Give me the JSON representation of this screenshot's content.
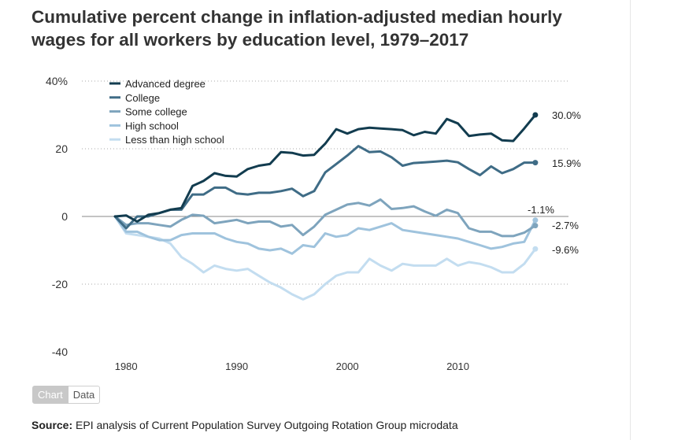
{
  "title": "Cumulative percent change in inflation-adjusted median hourly wages for all workers by education level, 1979–2017",
  "toggle": {
    "chart_label": "Chart",
    "data_label": "Data"
  },
  "source": {
    "label": "Source:",
    "text": " EPI analysis of Current Population Survey Outgoing Rotation Group microdata"
  },
  "colors": {
    "advanced": "#123c4f",
    "college": "#3f6c86",
    "some_college": "#7ea4bd",
    "high_school": "#9fc3dd",
    "less_hs": "#c3ddf0"
  },
  "chart_data": {
    "type": "line",
    "title": "Cumulative percent change in inflation-adjusted median hourly wages for all workers by education level, 1979–2017",
    "xlabel": "",
    "ylabel": "",
    "xlim": [
      1976,
      2020
    ],
    "ylim": [
      -40,
      40
    ],
    "x_ticks": [
      1980,
      1990,
      2000,
      2010
    ],
    "y_ticks": [
      40,
      20,
      0,
      -20,
      -40
    ],
    "y_tick_labels": [
      "40%",
      "20",
      "0",
      "-20",
      "-40"
    ],
    "grid": "horizontal dotted",
    "legend_position": "top-left",
    "x": [
      1979,
      1980,
      1981,
      1982,
      1983,
      1984,
      1985,
      1986,
      1987,
      1988,
      1989,
      1990,
      1991,
      1992,
      1993,
      1994,
      1995,
      1996,
      1997,
      1998,
      1999,
      2000,
      2001,
      2002,
      2003,
      2004,
      2005,
      2006,
      2007,
      2008,
      2009,
      2010,
      2011,
      2012,
      2013,
      2014,
      2015,
      2016,
      2017
    ],
    "series": [
      {
        "name": "Advanced degree",
        "color": "#123c4f",
        "end_label": "30.0%",
        "values": [
          0,
          0.3,
          -1.5,
          0.5,
          1.0,
          2.0,
          2.5,
          9.0,
          10.5,
          12.8,
          12.0,
          11.8,
          14.0,
          15.0,
          15.5,
          19.0,
          18.8,
          18.0,
          18.2,
          21.5,
          25.8,
          24.5,
          25.8,
          26.2,
          26.0,
          25.8,
          25.5,
          24.0,
          25.0,
          24.5,
          28.8,
          27.5,
          23.8,
          24.2,
          24.5,
          22.5,
          22.3,
          26.0,
          30.0
        ]
      },
      {
        "name": "College",
        "color": "#3f6c86",
        "end_label": "15.9%",
        "values": [
          0,
          -3.5,
          0,
          0,
          1.0,
          2.0,
          2.0,
          6.5,
          6.5,
          8.5,
          8.5,
          6.8,
          6.5,
          7.0,
          7.0,
          7.5,
          8.2,
          6.0,
          7.5,
          13.0,
          15.5,
          18.0,
          20.8,
          19.0,
          19.2,
          17.5,
          15.0,
          15.8,
          16.0,
          16.2,
          16.5,
          16.0,
          14.0,
          12.2,
          14.8,
          12.8,
          14.0,
          15.9,
          15.9
        ]
      },
      {
        "name": "Some college",
        "color": "#7ea4bd",
        "end_label": "-2.7%",
        "values": [
          0,
          -2.5,
          -2.0,
          -2.0,
          -2.5,
          -3.0,
          -1.0,
          0.5,
          0.2,
          -2.0,
          -1.5,
          -1.0,
          -2.0,
          -1.5,
          -1.5,
          -3.0,
          -2.5,
          -5.5,
          -3.0,
          0.5,
          2.0,
          3.5,
          4.0,
          3.2,
          5.0,
          2.2,
          2.5,
          3.0,
          1.5,
          0.2,
          2.0,
          1.0,
          -3.5,
          -4.5,
          -4.5,
          -5.8,
          -5.8,
          -4.8,
          -2.7
        ]
      },
      {
        "name": "High school",
        "color": "#9fc3dd",
        "end_label": "-1.1%",
        "values": [
          0,
          -4.5,
          -4.5,
          -6.0,
          -7.0,
          -7.0,
          -5.5,
          -5.0,
          -5.0,
          -5.0,
          -6.5,
          -7.5,
          -8.0,
          -9.5,
          -10.0,
          -9.5,
          -11.0,
          -8.5,
          -9.0,
          -5.0,
          -6.0,
          -5.5,
          -3.5,
          -4.0,
          -3.0,
          -2.0,
          -4.0,
          -4.5,
          -5.0,
          -5.5,
          -6.0,
          -6.5,
          -7.5,
          -8.5,
          -9.5,
          -9.0,
          -8.0,
          -7.5,
          -1.1
        ]
      },
      {
        "name": "Less than high school",
        "color": "#c3ddf0",
        "end_label": "-9.6%",
        "values": [
          0,
          -5.0,
          -5.5,
          -6.0,
          -6.5,
          -8.0,
          -12.0,
          -14.0,
          -16.5,
          -14.5,
          -15.5,
          -16.0,
          -15.5,
          -17.5,
          -19.5,
          -21.0,
          -23.0,
          -24.5,
          -23.0,
          -20.0,
          -17.5,
          -16.5,
          -16.5,
          -12.5,
          -14.5,
          -16.0,
          -14.0,
          -14.5,
          -14.5,
          -14.5,
          -12.5,
          -14.5,
          -13.5,
          -14.0,
          -15.0,
          -16.5,
          -16.5,
          -14.0,
          -9.6
        ]
      }
    ],
    "reference_line": {
      "y": 0
    }
  }
}
